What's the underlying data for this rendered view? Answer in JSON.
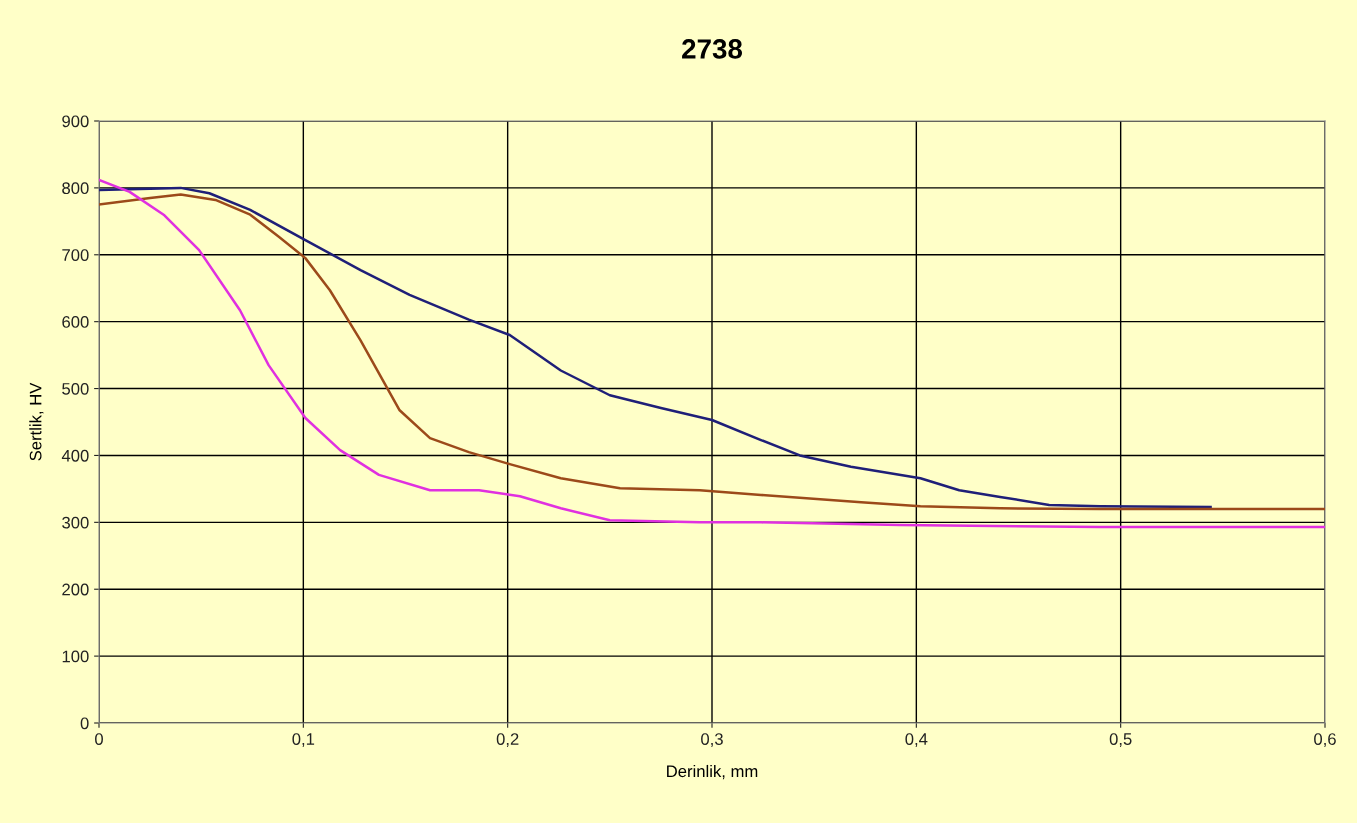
{
  "chart_data": {
    "type": "line",
    "title": "2738",
    "xlabel": "Derinlik, mm",
    "ylabel": "Sertlik, HV",
    "xlim": [
      0,
      0.6
    ],
    "ylim": [
      0,
      900
    ],
    "xticks": [
      0,
      {
        "value": 0.1,
        "label": "0,1"
      },
      {
        "value": 0.2,
        "label": "0,2"
      },
      {
        "value": 0.3,
        "label": "0,3"
      },
      {
        "value": 0.4,
        "label": "0,4"
      },
      {
        "value": 0.5,
        "label": "0,5"
      },
      {
        "value": 0.6,
        "label": "0,6"
      }
    ],
    "yticks": [
      0,
      100,
      200,
      300,
      400,
      500,
      600,
      700,
      800,
      900
    ],
    "grid": true,
    "legend": false,
    "marker": "none",
    "line_style": "solid",
    "series": [
      {
        "color": "#1f1f78",
        "x": [
          0,
          0.04,
          0.054,
          0.074,
          0.101,
          0.128,
          0.152,
          0.181,
          0.201,
          0.226,
          0.25,
          0.275,
          0.3,
          0.324,
          0.343,
          0.368,
          0.402,
          0.421,
          0.441,
          0.465,
          0.49,
          0.544
        ],
        "values": [
          797,
          800,
          792,
          767,
          722,
          677,
          640,
          603,
          580,
          527,
          490,
          471,
          453,
          423,
          400,
          383,
          366,
          348,
          338,
          326,
          324,
          323
        ]
      },
      {
        "color": "#9c4a1a",
        "x": [
          0,
          0.025,
          0.04,
          0.057,
          0.074,
          0.088,
          0.101,
          0.113,
          0.128,
          0.147,
          0.162,
          0.181,
          0.201,
          0.226,
          0.255,
          0.294,
          0.324,
          0.373,
          0.402,
          0.441,
          0.49,
          0.6
        ],
        "values": [
          775,
          785,
          790,
          782,
          760,
          727,
          695,
          647,
          572,
          468,
          426,
          405,
          387,
          366,
          351,
          348,
          341,
          330,
          324,
          321,
          320,
          320
        ]
      },
      {
        "color": "#e030e0",
        "x": [
          0,
          0.015,
          0.032,
          0.049,
          0.069,
          0.083,
          0.101,
          0.118,
          0.137,
          0.162,
          0.186,
          0.206,
          0.226,
          0.25,
          0.294,
          0.324,
          0.392,
          0.49,
          0.6
        ],
        "values": [
          812,
          794,
          759,
          707,
          617,
          535,
          456,
          408,
          371,
          348,
          348,
          339,
          321,
          303,
          300,
          300,
          296,
          293,
          293
        ]
      }
    ]
  }
}
